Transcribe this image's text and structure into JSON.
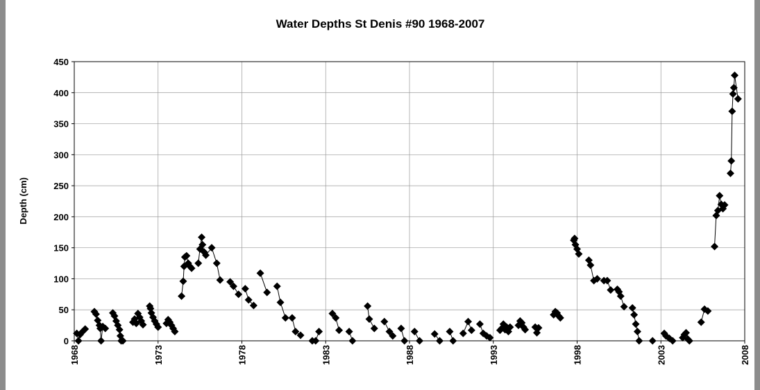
{
  "chart_data": {
    "type": "scatter-line",
    "title": "Water Depths St Denis  #90  1968-2007",
    "y_label": "Depth (cm)",
    "xlim": [
      1968,
      2008
    ],
    "xticks": [
      1968,
      1973,
      1978,
      1983,
      1988,
      1993,
      1998,
      2003,
      2008
    ],
    "ylim": [
      0,
      450
    ],
    "yticks": [
      0,
      50,
      100,
      150,
      200,
      250,
      300,
      350,
      400,
      450
    ],
    "grid": true,
    "series": [
      {
        "color": "#000000",
        "x": [
          1968.15,
          1968.25,
          1968.35,
          1968.5,
          1968.65,
          null,
          1969.2,
          1969.3,
          1969.4,
          1969.5,
          1969.55,
          1969.6,
          1969.7,
          1969.85,
          null,
          1970.3,
          1970.4,
          1970.5,
          1970.6,
          1970.7,
          1970.75,
          1970.8,
          1970.9,
          null,
          1971.5,
          1971.6,
          1971.7,
          1971.8,
          1971.9,
          1972.0,
          1972.1,
          null,
          1972.5,
          1972.55,
          1972.6,
          1972.7,
          1972.8,
          1972.9,
          1973.0,
          null,
          1973.5,
          1973.6,
          1973.7,
          1973.8,
          1973.9,
          1974.0,
          null,
          1974.4,
          1974.5,
          1974.55,
          1974.6,
          1974.7,
          1974.8,
          1974.9,
          1975.0,
          null,
          1975.4,
          1975.5,
          1975.6,
          1975.65,
          1975.75,
          1975.85,
          1976.2,
          1976.5,
          1976.7,
          null,
          1977.3,
          1977.5,
          1977.8,
          null,
          1978.2,
          1978.4,
          1978.7,
          null,
          1979.1,
          1979.5,
          null,
          1980.1,
          1980.3,
          1980.6,
          null,
          1981.0,
          1981.2,
          1981.5,
          null,
          1982.2,
          1982.4,
          1982.6,
          null,
          1983.4,
          1983.6,
          1983.8,
          null,
          1984.4,
          1984.6,
          null,
          1985.5,
          1985.6,
          1985.9,
          null,
          1986.5,
          1986.8,
          1987.0,
          null,
          1987.5,
          1987.7,
          null,
          1988.3,
          1988.6,
          null,
          1989.5,
          1989.8,
          null,
          1990.4,
          1990.6,
          null,
          1991.2,
          1991.5,
          1991.7,
          null,
          1992.2,
          1992.4,
          1992.6,
          1992.8,
          null,
          1993.4,
          1993.5,
          1993.6,
          1993.7,
          1993.8,
          1993.9,
          1994.0,
          null,
          1994.5,
          1994.6,
          1994.7,
          1994.8,
          1994.9,
          null,
          1995.5,
          1995.6,
          1995.7,
          null,
          1996.6,
          1996.7,
          1996.8,
          1996.9,
          1997.0,
          null,
          1997.8,
          1997.85,
          1997.9,
          1998.0,
          1998.1,
          null,
          1998.7,
          1998.8,
          1999.0,
          1999.2,
          null,
          1999.6,
          1999.8,
          2000.0,
          null,
          2000.4,
          2000.5,
          2000.6,
          2000.8,
          null,
          2001.3,
          2001.4,
          2001.5,
          2001.6,
          2001.7,
          null,
          2002.5,
          null,
          2003.2,
          2003.3,
          2003.5,
          2003.7,
          null,
          2004.3,
          2004.4,
          2004.5,
          2004.6,
          2004.7,
          null,
          2005.4,
          2005.6,
          2005.8,
          null,
          2006.2,
          2006.3,
          2006.4,
          2006.5,
          2006.6,
          2006.7,
          2006.8,
          null,
          2007.15,
          2007.2,
          2007.25,
          2007.3,
          2007.35,
          2007.4,
          2007.6
        ],
        "values": [
          12,
          0,
          10,
          15,
          19,
          null,
          47,
          43,
          33,
          25,
          20,
          0,
          23,
          20,
          null,
          45,
          40,
          32,
          25,
          18,
          8,
          0,
          0,
          null,
          30,
          35,
          28,
          44,
          38,
          32,
          26,
          null,
          56,
          52,
          45,
          38,
          32,
          27,
          22,
          null,
          28,
          34,
          30,
          25,
          20,
          15,
          null,
          72,
          96,
          120,
          135,
          137,
          125,
          120,
          117,
          null,
          125,
          148,
          167,
          155,
          143,
          138,
          150,
          125,
          98,
          null,
          95,
          88,
          75,
          null,
          84,
          66,
          57,
          null,
          109,
          78,
          null,
          88,
          62,
          37,
          null,
          37,
          15,
          9,
          null,
          0,
          0,
          15,
          null,
          44,
          37,
          17,
          null,
          15,
          0,
          null,
          56,
          35,
          20,
          null,
          31,
          15,
          8,
          null,
          20,
          0,
          null,
          15,
          0,
          null,
          11,
          0,
          null,
          15,
          0,
          null,
          12,
          31,
          17,
          null,
          27,
          12,
          8,
          5,
          null,
          17,
          20,
          27,
          18,
          22,
          15,
          22,
          null,
          25,
          32,
          29,
          22,
          18,
          null,
          22,
          13,
          21,
          null,
          42,
          47,
          45,
          40,
          37,
          null,
          162,
          165,
          155,
          148,
          140,
          null,
          130,
          122,
          97,
          100,
          null,
          97,
          97,
          82,
          null,
          83,
          79,
          72,
          55,
          null,
          53,
          42,
          27,
          15,
          0,
          null,
          0,
          null,
          12,
          8,
          4,
          0,
          null,
          5,
          10,
          13,
          3,
          0,
          null,
          30,
          51,
          48,
          null,
          152,
          202,
          210,
          234,
          220,
          213,
          219,
          null,
          270,
          290,
          370,
          398,
          408,
          428,
          390
        ]
      }
    ]
  }
}
